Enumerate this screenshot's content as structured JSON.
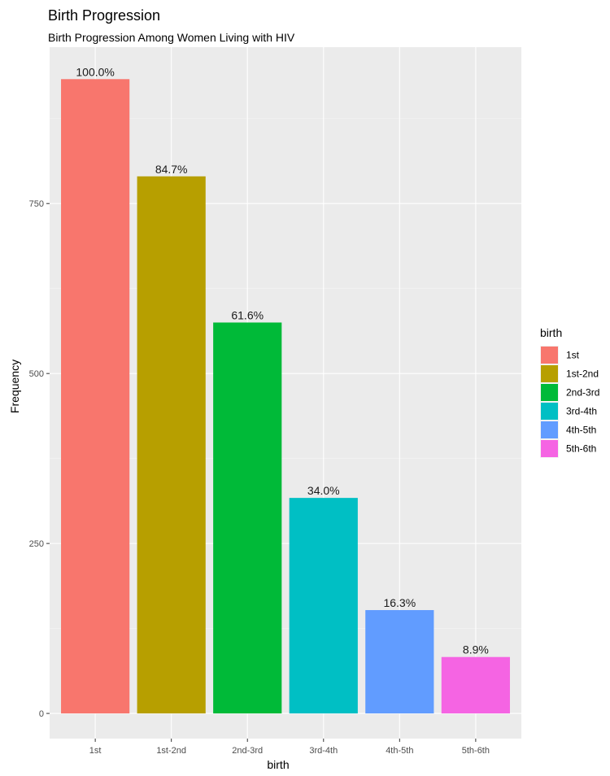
{
  "chart_data": {
    "type": "bar",
    "title": "Birth Progression",
    "subtitle": "Birth Progression Among Women Living with HIV",
    "xlabel": "birth",
    "ylabel": "Frequency",
    "categories": [
      "1st",
      "1st-2nd",
      "2nd-3rd",
      "3rd-4th",
      "4th-5th",
      "5th-6th"
    ],
    "values": [
      933,
      790,
      575,
      317,
      152,
      83
    ],
    "data_labels": [
      "100.0%",
      "84.7%",
      "61.6%",
      "34.0%",
      "16.3%",
      "8.9%"
    ],
    "colors": [
      "#F8766D",
      "#B79F00",
      "#00BA38",
      "#00BFC4",
      "#619CFF",
      "#F564E3"
    ],
    "yticks": [
      0,
      250,
      500,
      750
    ],
    "ylim": [
      -37,
      980
    ],
    "grid": true,
    "panel_background": "#EBEBEB",
    "legend": {
      "title": "birth",
      "position": "right",
      "entries": [
        "1st",
        "1st-2nd",
        "2nd-3rd",
        "3rd-4th",
        "4th-5th",
        "5th-6th"
      ]
    }
  }
}
